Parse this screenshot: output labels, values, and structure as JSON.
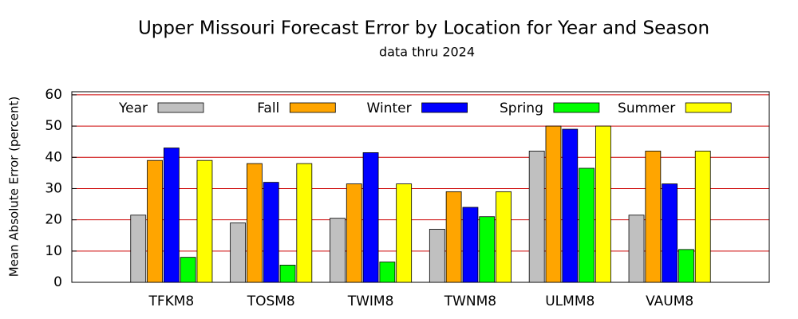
{
  "chart_data": {
    "type": "bar",
    "title": "Upper Missouri Forecast Error by Location for Year and Season",
    "subtitle": "data thru 2024",
    "y_label": "Mean Absolute Error (percent)",
    "categories": [
      "TFKM8",
      "TOSM8",
      "TWIM8",
      "TWNM8",
      "ULMM8",
      "VAUM8"
    ],
    "series": [
      {
        "name": "Year",
        "color": "#c0c0c0",
        "values": [
          21.5,
          19,
          20.5,
          17,
          42,
          21.5
        ]
      },
      {
        "name": "Fall",
        "color": "#ffa500",
        "values": [
          39,
          38,
          31.5,
          29,
          50,
          42
        ]
      },
      {
        "name": "Winter",
        "color": "#0000ff",
        "values": [
          43,
          32,
          41.5,
          24,
          49,
          31.5
        ]
      },
      {
        "name": "Spring",
        "color": "#00ff00",
        "values": [
          8,
          5.5,
          6.5,
          21,
          36.5,
          10.5
        ]
      },
      {
        "name": "Summer",
        "color": "#ffff00",
        "values": [
          39,
          38,
          31.5,
          29,
          50,
          42
        ]
      }
    ],
    "ylim": [
      0,
      61
    ],
    "yticks": [
      0,
      10,
      20,
      30,
      40,
      50,
      60
    ],
    "grid": true,
    "grid_color": "#cc0000",
    "legend": "top"
  }
}
